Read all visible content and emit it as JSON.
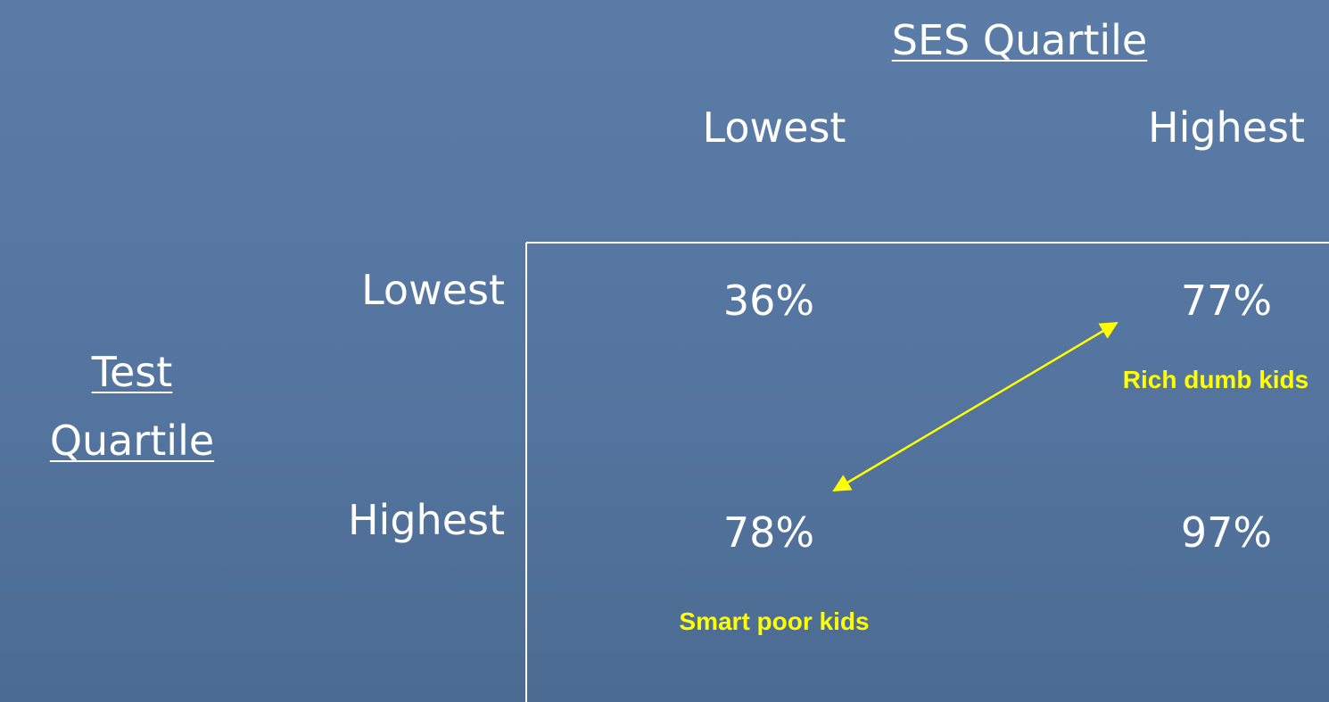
{
  "column_header": "SES Quartile",
  "columns": [
    "Lowest",
    "Highest"
  ],
  "row_header": "Test Quartile",
  "rows": [
    {
      "label": "Lowest",
      "cells": [
        "36%",
        "77%"
      ]
    },
    {
      "label": "Highest",
      "cells": [
        "78%",
        "97%"
      ]
    }
  ],
  "annotations": [
    "Rich dumb kids",
    "Smart poor kids"
  ]
}
